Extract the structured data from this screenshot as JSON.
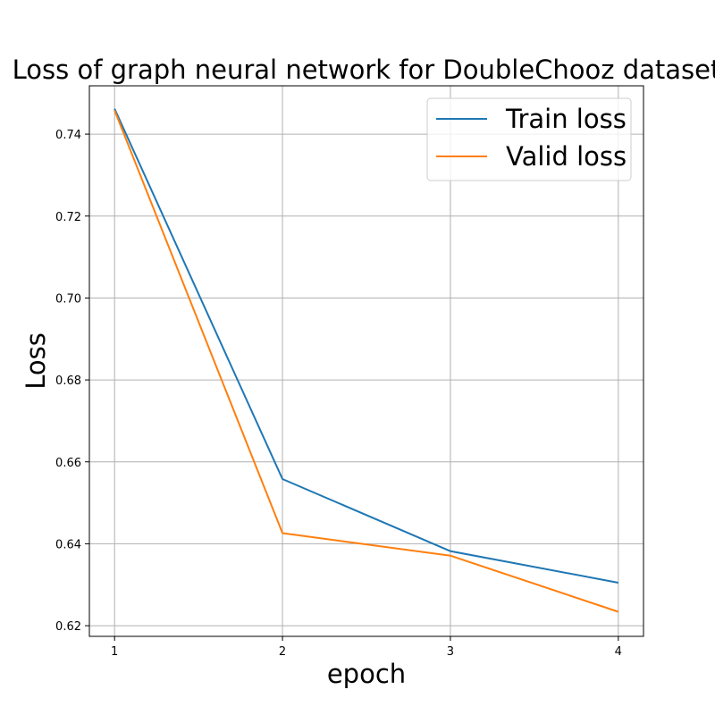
{
  "chart_data": {
    "type": "line",
    "title": "Loss of graph neural network for DoubleChooz dataset",
    "xlabel": "epoch",
    "ylabel": "Loss",
    "x": [
      1,
      2,
      3,
      4
    ],
    "xlim": [
      0.85,
      4.15
    ],
    "ylim": [
      0.6174,
      0.7518
    ],
    "xticks": [
      1,
      2,
      3,
      4
    ],
    "xtick_labels": [
      "1",
      "2",
      "3",
      "4"
    ],
    "yticks": [
      0.62,
      0.64,
      0.66,
      0.68,
      0.7,
      0.72,
      0.74
    ],
    "ytick_labels": [
      "0.62",
      "0.64",
      "0.66",
      "0.68",
      "0.70",
      "0.72",
      "0.74"
    ],
    "grid": true,
    "legend_position": "top-right",
    "series": [
      {
        "name": "Train loss",
        "color": "#1f77b4",
        "values": [
          0.7462,
          0.6558,
          0.6382,
          0.6305
        ]
      },
      {
        "name": "Valid loss",
        "color": "#ff7f0e",
        "values": [
          0.7458,
          0.6426,
          0.6371,
          0.6234
        ]
      }
    ]
  }
}
